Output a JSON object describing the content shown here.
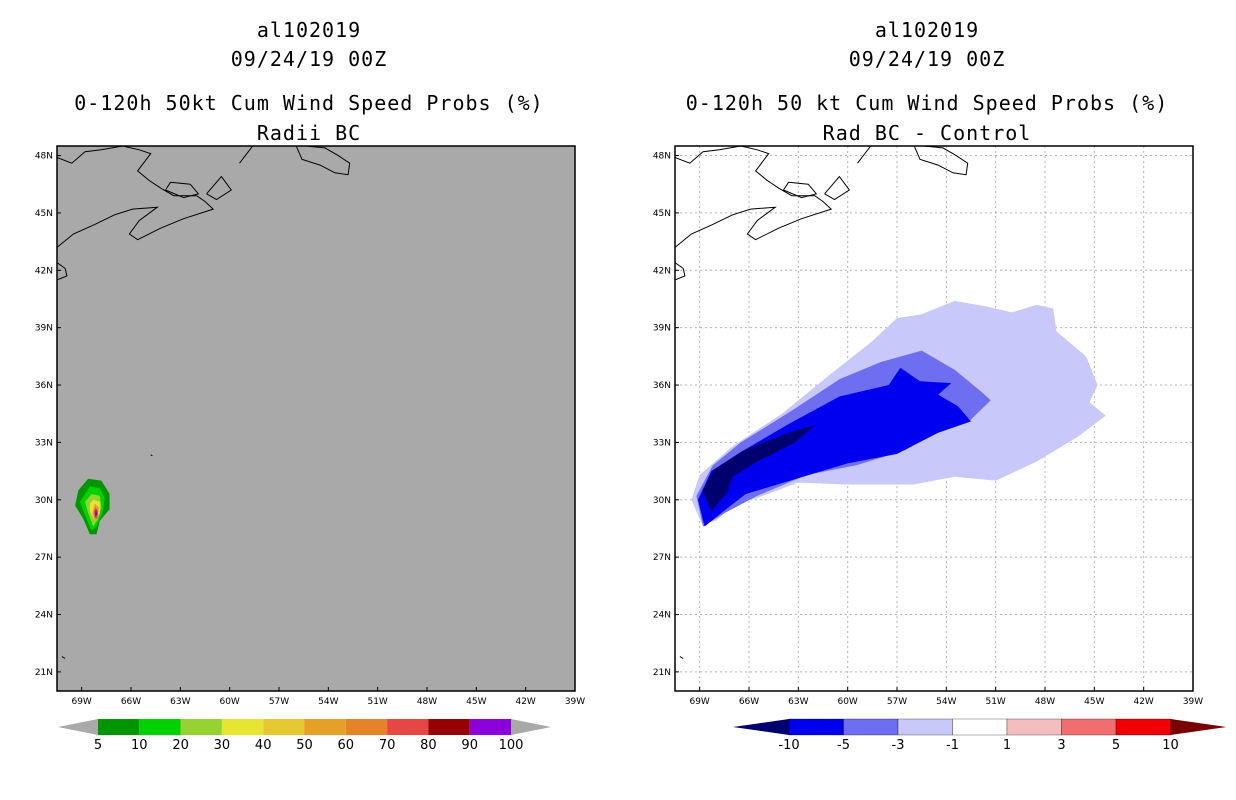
{
  "chart_data": [
    {
      "type": "heatmap",
      "title_lines": [
        "al102019",
        "09/24/19 00Z",
        "0-120h 50kt Cum Wind Speed Probs (%)",
        "Radii BC"
      ],
      "x_ticks": [
        "69W",
        "66W",
        "63W",
        "60W",
        "57W",
        "54W",
        "51W",
        "48W",
        "45W",
        "42W",
        "39W"
      ],
      "y_ticks": [
        "48N",
        "45N",
        "42N",
        "39N",
        "36N",
        "33N",
        "30N",
        "27N",
        "24N",
        "21N"
      ],
      "xlim": [
        -70.5,
        -39
      ],
      "ylim": [
        20,
        48.5
      ],
      "grid": false,
      "background": "#a9a9a9",
      "colorbar": {
        "labels": [
          "5",
          "10",
          "20",
          "30",
          "40",
          "50",
          "60",
          "70",
          "80",
          "90",
          "100"
        ],
        "colors": [
          "#009600",
          "#00d200",
          "#96d232",
          "#e6e632",
          "#e6c832",
          "#e6a028",
          "#e68228",
          "#e64646",
          "#960000",
          "#8c00dc"
        ],
        "end_color": "#a9a9a9"
      },
      "feature": "small probability maximum near 29N 68W, peak above 90%"
    },
    {
      "type": "heatmap",
      "title_lines": [
        "al102019",
        "09/24/19 00Z",
        "0-120h 50 kt Cum Wind Speed Probs (%)",
        "Rad BC - Control"
      ],
      "x_ticks": [
        "69W",
        "66W",
        "63W",
        "60W",
        "57W",
        "54W",
        "51W",
        "48W",
        "45W",
        "42W",
        "39W"
      ],
      "y_ticks": [
        "48N",
        "45N",
        "42N",
        "39N",
        "36N",
        "33N",
        "30N",
        "27N",
        "24N",
        "21N"
      ],
      "xlim": [
        -70.5,
        -39
      ],
      "ylim": [
        20,
        48.5
      ],
      "grid": true,
      "background": "#ffffff",
      "colorbar": {
        "labels": [
          "-10",
          "-5",
          "-3",
          "-1",
          "1",
          "3",
          "5",
          "10"
        ],
        "colors": [
          "#00006e",
          "#0000f0",
          "#6e6ef0",
          "#c8c8fa",
          "#ffffff",
          "#f5bebe",
          "#f06e6e",
          "#f00000",
          "#780000"
        ],
        "min_color": "#00006e",
        "max_color": "#780000"
      },
      "feature": "negative difference plume from 28N 68W extending northeast to about 40N 45W, strongest (< -10) near 31N 68W"
    }
  ]
}
